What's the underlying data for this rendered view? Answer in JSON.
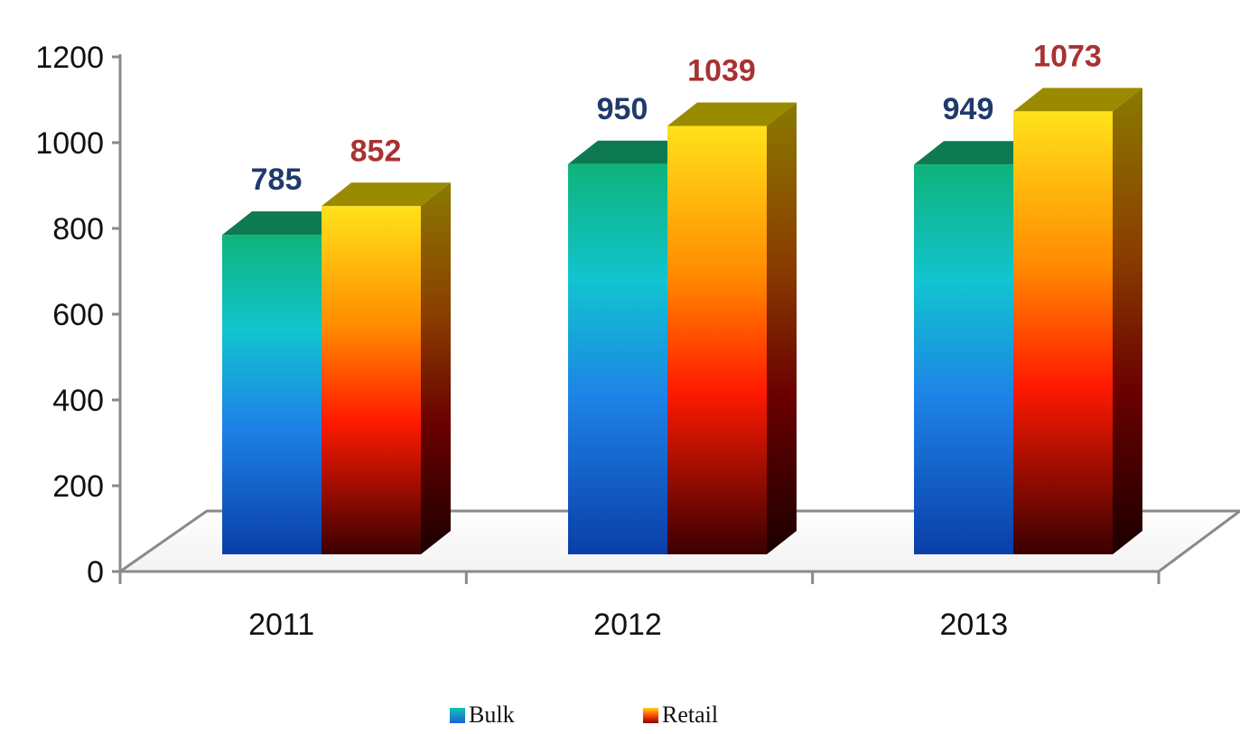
{
  "chart_data": {
    "type": "bar",
    "categories": [
      "2011",
      "2012",
      "2013"
    ],
    "series": [
      {
        "name": "Bulk",
        "values": [
          785,
          950,
          949
        ],
        "label_color": "#1f3a6b"
      },
      {
        "name": "Retail",
        "values": [
          852,
          1039,
          1073
        ],
        "label_color": "#a83232"
      }
    ],
    "title": "",
    "xlabel": "",
    "ylabel": "",
    "ylim": [
      0,
      1200
    ],
    "yticks": [
      "0",
      "200",
      "400",
      "600",
      "800",
      "1000",
      "1200"
    ],
    "grid": false,
    "legend_position": "bottom",
    "style": "3d-gradient"
  }
}
